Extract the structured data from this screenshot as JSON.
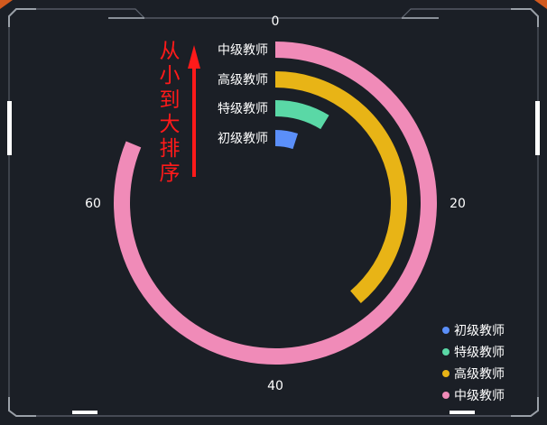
{
  "colors": {
    "background": "#1b1f26",
    "frame_line": "#5f6570",
    "frame_accent": "#ffffff",
    "corner_accent": "#d25a1e",
    "annotation": "#ff1a1a",
    "label_text": "#ffffff"
  },
  "annotation": {
    "chars": [
      "从",
      "小",
      "到",
      "大",
      "排",
      "序"
    ]
  },
  "chart_data": {
    "type": "radial-bar",
    "max": 80,
    "angle_ticks": [
      0,
      20,
      40,
      60
    ],
    "categories": [
      "中级教师",
      "高级教师",
      "特级教师",
      "初级教师"
    ],
    "series": [
      {
        "category": "初级教师",
        "value": 4,
        "color": "#5b8ff9"
      },
      {
        "category": "特级教师",
        "value": 7,
        "color": "#5ad8a6"
      },
      {
        "category": "高级教师",
        "value": 31,
        "color": "#e8b416"
      },
      {
        "category": "中级教师",
        "value": 65,
        "color": "#f08bb8"
      }
    ],
    "legend": {
      "position": "bottom-right",
      "items": [
        {
          "label": "初级教师",
          "color": "#5b8ff9"
        },
        {
          "label": "特级教师",
          "color": "#5ad8a6"
        },
        {
          "label": "高级教师",
          "color": "#e8b416"
        },
        {
          "label": "中级教师",
          "color": "#f08bb8"
        }
      ]
    }
  }
}
